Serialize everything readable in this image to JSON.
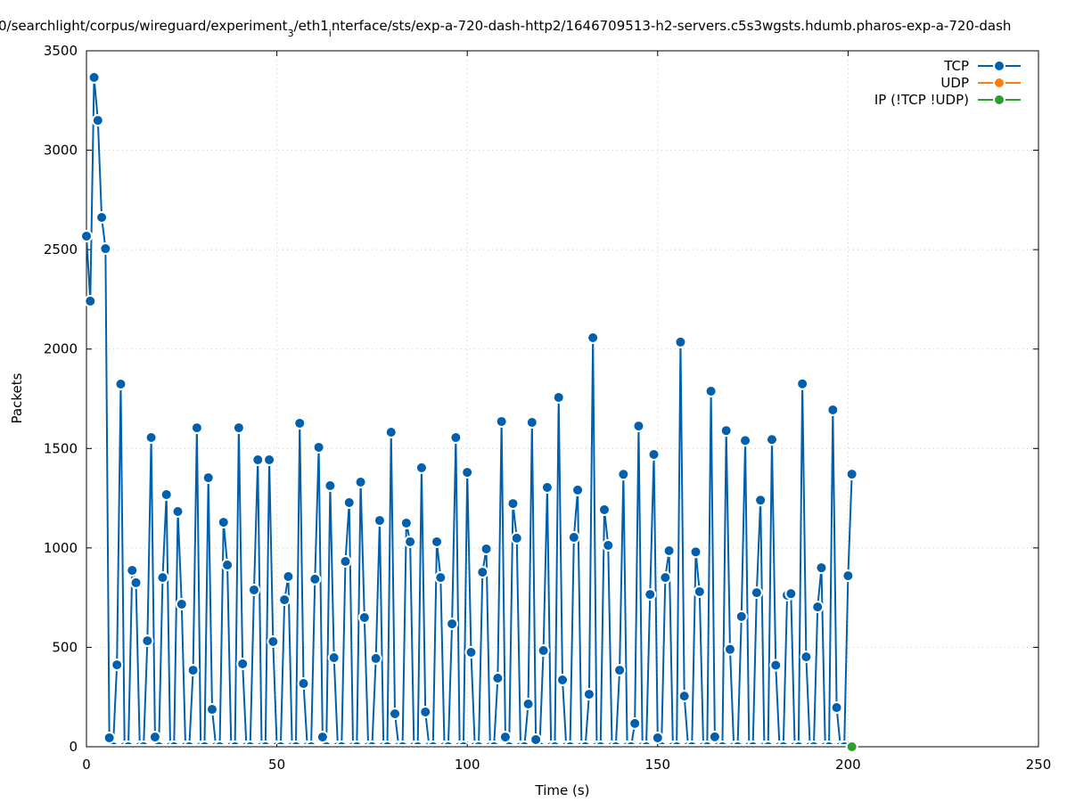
{
  "chart_data": {
    "type": "line",
    "title_parts": [
      "0/searchlight/corpus/wireguard/experiment",
      "3",
      "/eth1",
      "i",
      "nterface/sts/exp-a-720-dash-http2/1646709513-h2-servers.c5s3wgsts.hdumb.pharos-exp-a-720-dash"
    ],
    "xlabel": "Time (s)",
    "ylabel": "Packets",
    "xlim": [
      0,
      250
    ],
    "ylim": [
      0,
      3500
    ],
    "xticks": [
      0,
      50,
      100,
      150,
      200,
      250
    ],
    "yticks": [
      0,
      500,
      1000,
      1500,
      2000,
      2500,
      3000,
      3500
    ],
    "grid": true,
    "legend_position": "top-right",
    "series": [
      {
        "name": "TCP",
        "color": "#0060ad",
        "x_start": 0,
        "x_step": 1,
        "values": [
          2568,
          2241,
          3366,
          3150,
          2662,
          2505,
          45,
          0,
          412,
          1824,
          0,
          0,
          887,
          825,
          0,
          0,
          533,
          1555,
          49,
          0,
          851,
          1268,
          0,
          0,
          1183,
          717,
          0,
          0,
          385,
          1604,
          0,
          0,
          1353,
          188,
          0,
          0,
          1129,
          914,
          0,
          0,
          1604,
          417,
          0,
          0,
          789,
          1443,
          0,
          0,
          1443,
          529,
          0,
          0,
          739,
          856,
          0,
          0,
          1627,
          318,
          0,
          0,
          843,
          1506,
          49,
          0,
          1313,
          448,
          0,
          0,
          932,
          1228,
          0,
          0,
          1331,
          650,
          0,
          0,
          444,
          1138,
          0,
          0,
          1582,
          166,
          0,
          0,
          1125,
          1031,
          0,
          0,
          1403,
          175,
          0,
          0,
          1031,
          851,
          0,
          0,
          618,
          1555,
          0,
          0,
          1380,
          475,
          0,
          0,
          878,
          995,
          0,
          0,
          345,
          1636,
          49,
          0,
          1223,
          1049,
          0,
          0,
          215,
          1631,
          36,
          0,
          484,
          1304,
          0,
          0,
          1757,
          336,
          0,
          0,
          1053,
          1291,
          0,
          0,
          264,
          2057,
          0,
          0,
          1192,
          1013,
          0,
          0,
          385,
          1370,
          0,
          0,
          117,
          1613,
          0,
          0,
          766,
          1470,
          45,
          0,
          851,
          986,
          0,
          0,
          2035,
          255,
          0,
          0,
          980,
          780,
          0,
          0,
          1788,
          50,
          0,
          0,
          1590,
          490,
          0,
          0,
          655,
          1540,
          0,
          0,
          775,
          1240,
          0,
          0,
          1545,
          410,
          0,
          0,
          762,
          770,
          0,
          0,
          1825,
          452,
          0,
          0,
          703,
          900,
          0,
          0,
          1694,
          197,
          0,
          0,
          860,
          1371
        ]
      },
      {
        "name": "UDP",
        "color": "#ff7f0e",
        "x_start": 0,
        "x_step": 1,
        "values": []
      },
      {
        "name": "IP (!TCP  !UDP)",
        "color": "#2ca02c",
        "x_start": 201,
        "x_step": 1,
        "values": [
          0
        ]
      }
    ]
  }
}
